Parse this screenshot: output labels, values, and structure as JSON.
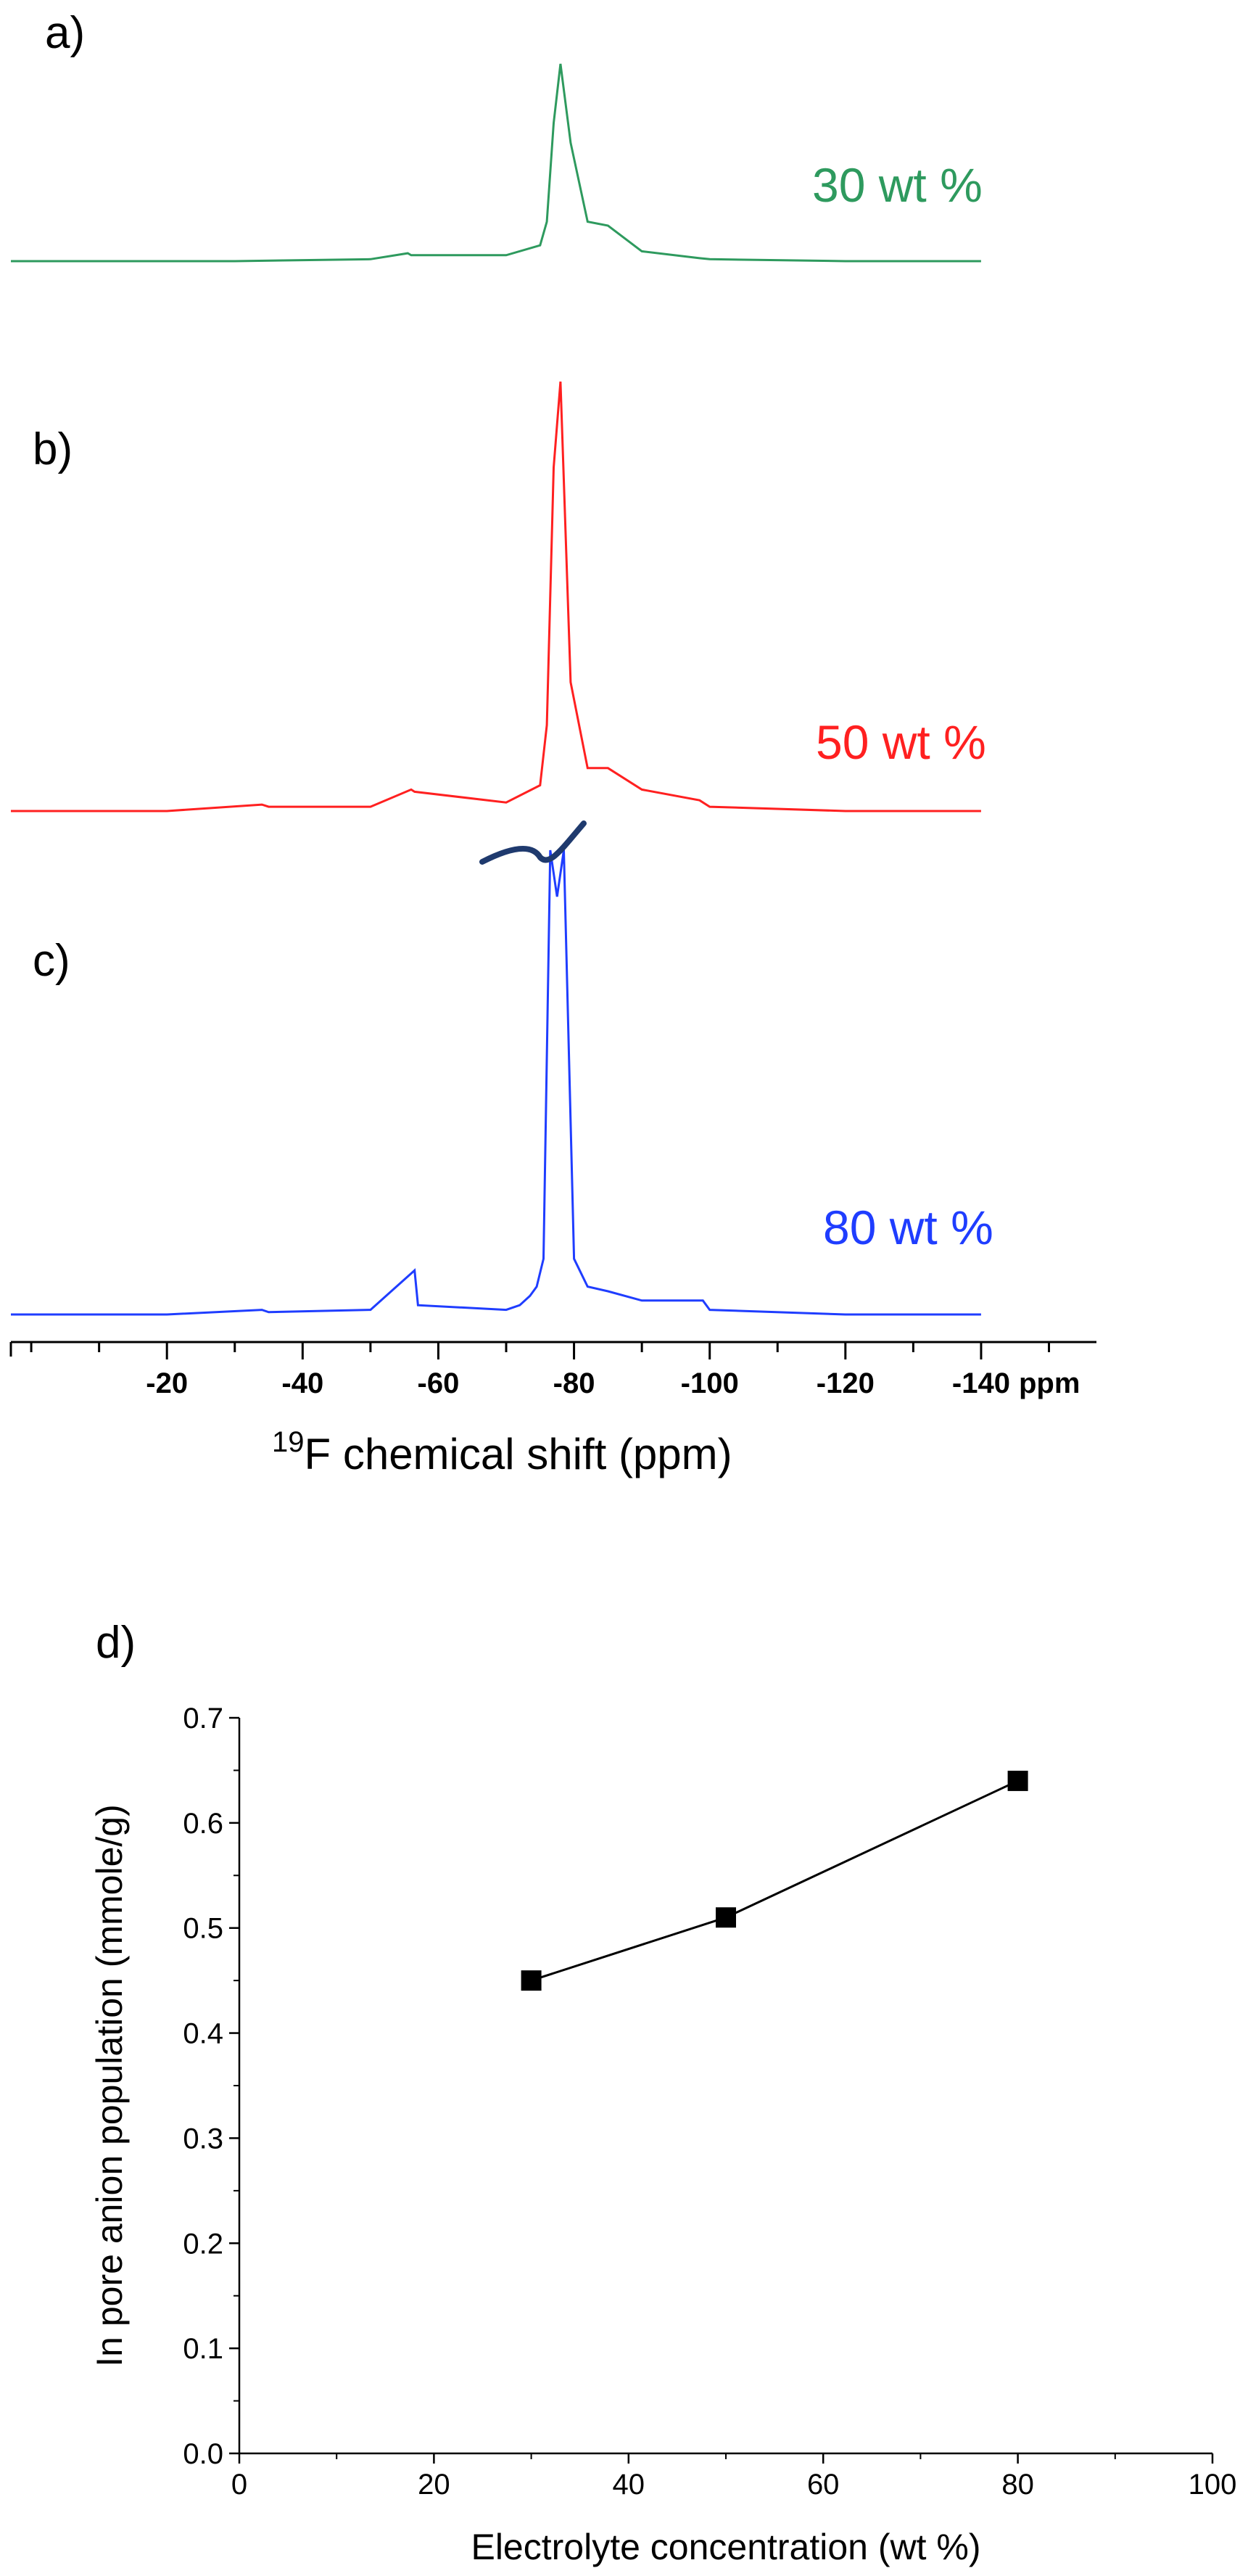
{
  "chart_data": [
    {
      "type": "line",
      "panels": [
        {
          "label": "a)",
          "series_label": "30 wt %",
          "color": "#2e9a5e"
        },
        {
          "label": "b)",
          "series_label": "50 wt %",
          "color": "#ff2020"
        },
        {
          "label": "c)",
          "series_label": "80 wt %",
          "color": "#1f3dff"
        }
      ],
      "series": [
        {
          "name": "30 wt %",
          "x": [
            -140,
            -120,
            -100,
            -98.5,
            -90,
            -85,
            -82,
            -79.5,
            -78,
            -77,
            -76,
            -75,
            -70,
            -56,
            -55.5,
            -50,
            -30,
            -20,
            -10,
            0,
            3
          ],
          "values": [
            0.0,
            0.0,
            0.01,
            0.015,
            0.05,
            0.18,
            0.2,
            0.6,
            1.0,
            0.7,
            0.2,
            0.08,
            0.03,
            0.03,
            0.04,
            0.01,
            0.0,
            0.0,
            0.0,
            0.0,
            0.0
          ]
        },
        {
          "name": "50 wt %",
          "x": [
            -140,
            -120,
            -100,
            -98.5,
            -90,
            -85,
            -82,
            -79.5,
            -78,
            -77,
            -76,
            -75,
            -70,
            -56.5,
            -56,
            -50,
            -35,
            -34,
            -20,
            -10,
            0,
            3
          ],
          "values": [
            0.0,
            0.0,
            0.01,
            0.025,
            0.05,
            0.1,
            0.1,
            0.3,
            1.0,
            0.8,
            0.2,
            0.06,
            0.02,
            0.045,
            0.05,
            0.01,
            0.01,
            0.015,
            0.0,
            0.0,
            0.0,
            0.0
          ]
        },
        {
          "name": "80 wt %",
          "x": [
            -140,
            -120,
            -100,
            -99,
            -90,
            -85,
            -82,
            -80,
            -78.5,
            -77.5,
            -76.5,
            -75.5,
            -74.5,
            -73.5,
            -72,
            -70,
            -57,
            -56.5,
            -50,
            -35,
            -34,
            -20,
            -10,
            0,
            3
          ],
          "values": [
            0.0,
            0.0,
            0.01,
            0.03,
            0.03,
            0.05,
            0.06,
            0.12,
            1.0,
            0.9,
            1.0,
            0.12,
            0.06,
            0.04,
            0.02,
            0.01,
            0.02,
            0.095,
            0.01,
            0.005,
            0.01,
            0.0,
            0.0,
            0.0,
            0.0
          ]
        }
      ],
      "xaxis": {
        "label_prefix": "19",
        "label_main": "F chemical shift (ppm)",
        "unit_label": "ppm",
        "range": [
          3,
          -157
        ],
        "ticks": [
          {
            "value": -20,
            "label": "-20"
          },
          {
            "value": -40,
            "label": "-40"
          },
          {
            "value": -60,
            "label": "-60"
          },
          {
            "value": -80,
            "label": "-80"
          },
          {
            "value": -100,
            "label": "-100"
          },
          {
            "value": -120,
            "label": "-120"
          },
          {
            "value": -140,
            "label": "-140"
          }
        ]
      },
      "annotation": "axis break mark above the 80 wt % main peak"
    },
    {
      "type": "line",
      "label": "d)",
      "xlabel": "Electrolyte concentration (wt %)",
      "ylabel": "In pore anion population (mmole/g)",
      "xlim": [
        0,
        100
      ],
      "ylim": [
        0.0,
        0.7
      ],
      "xticks": [
        {
          "value": 0,
          "label": "0"
        },
        {
          "value": 20,
          "label": "20"
        },
        {
          "value": 40,
          "label": "40"
        },
        {
          "value": 60,
          "label": "60"
        },
        {
          "value": 80,
          "label": "80"
        },
        {
          "value": 100,
          "label": "100"
        }
      ],
      "yticks": [
        {
          "value": 0.0,
          "label": "0.0"
        },
        {
          "value": 0.1,
          "label": "0.1"
        },
        {
          "value": 0.2,
          "label": "0.2"
        },
        {
          "value": 0.3,
          "label": "0.3"
        },
        {
          "value": 0.4,
          "label": "0.4"
        },
        {
          "value": 0.5,
          "label": "0.5"
        },
        {
          "value": 0.6,
          "label": "0.6"
        },
        {
          "value": 0.7,
          "label": "0.7"
        }
      ],
      "series": [
        {
          "x": [
            30,
            50,
            80
          ],
          "values": [
            0.45,
            0.51,
            0.64
          ],
          "marker": "filled-square",
          "color": "#000000"
        }
      ],
      "grid": false
    }
  ]
}
